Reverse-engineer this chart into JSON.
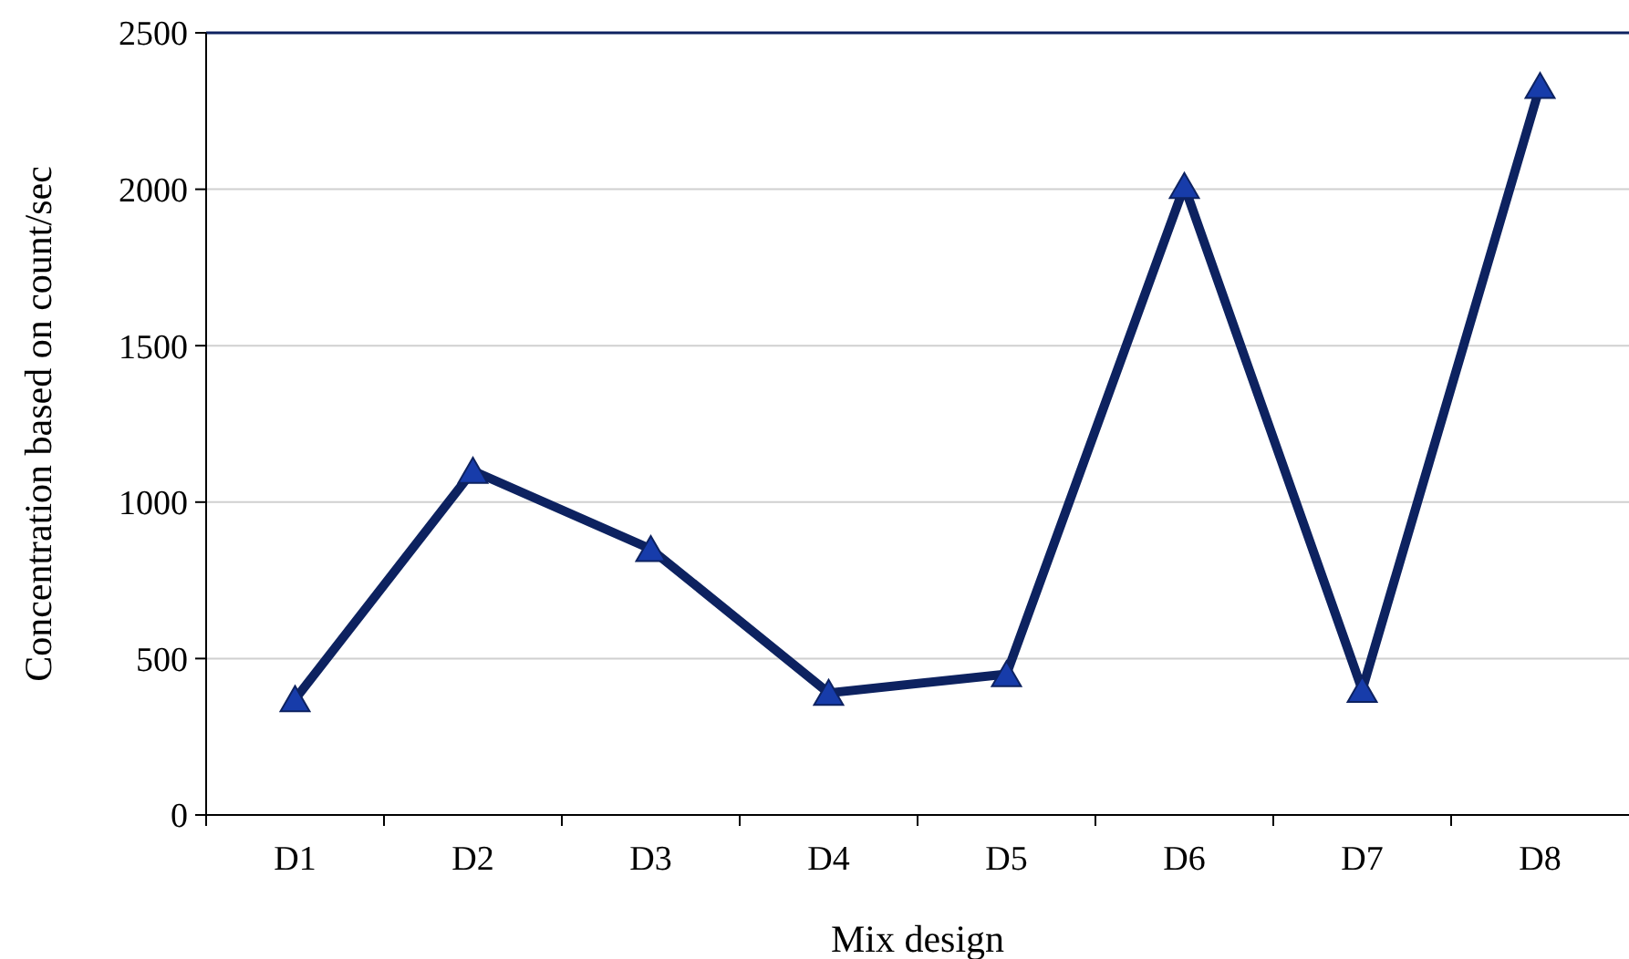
{
  "chart_data": {
    "type": "line",
    "xlabel": "Mix design",
    "ylabel": "Concentration based on  count/sec",
    "categories": [
      "D1",
      "D2",
      "D3",
      "D4",
      "D5",
      "D6",
      "D7",
      "D8"
    ],
    "series": [
      {
        "color": "#0d2260",
        "values": [
          370,
          1100,
          850,
          390,
          450,
          2010,
          400,
          2330
        ]
      }
    ],
    "ylim": [
      0,
      2500
    ],
    "yticks": [
      0,
      500,
      1000,
      1500,
      2000,
      2500
    ],
    "grid": "y",
    "marker": "triangle",
    "line_style": "solid"
  }
}
